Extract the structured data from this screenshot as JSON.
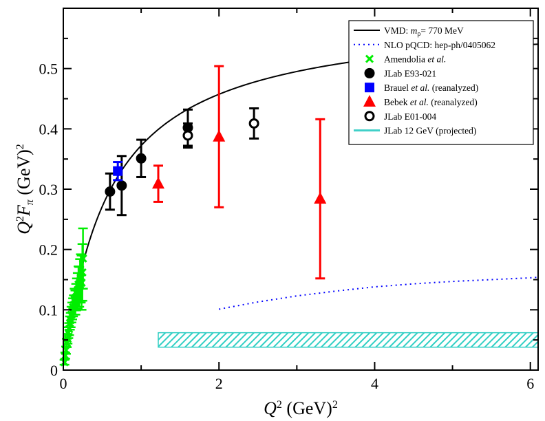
{
  "chart_data": {
    "type": "scatter",
    "title": "",
    "xlabel": {
      "q": "Q",
      "sup": "2",
      "units": "(GeV)",
      "units_sup": "2"
    },
    "ylabel": {
      "q": "Q",
      "sup": "2",
      "f": "F",
      "sub": "π",
      "units": "(GeV)",
      "units_sup": "2"
    },
    "xlim": [
      0,
      6.1
    ],
    "ylim": [
      0,
      0.6
    ],
    "xticks": [
      "0",
      "2",
      "4",
      "6"
    ],
    "xtick_values": [
      0,
      2,
      4,
      6
    ],
    "yticks": [
      "0",
      "0.1",
      "0.2",
      "0.3",
      "0.4",
      "0.5"
    ],
    "ytick_values": [
      0,
      0.1,
      0.2,
      0.3,
      0.4,
      0.5
    ],
    "legend_position": "top-right",
    "legend": [
      {
        "key": "vmd",
        "parts": [
          {
            "t": "VMD: "
          },
          {
            "t": "m",
            "i": true
          },
          {
            "t": "ρ",
            "sub": true
          },
          {
            "t": "= 770 MeV"
          }
        ]
      },
      {
        "key": "nlo",
        "parts": [
          {
            "t": "NLO pQCD: hep-ph/0405062"
          }
        ]
      },
      {
        "key": "amendolia",
        "parts": [
          {
            "t": "Amendolia "
          },
          {
            "t": "et al.",
            "i": true
          }
        ]
      },
      {
        "key": "e93",
        "parts": [
          {
            "t": "JLab E93-021"
          }
        ]
      },
      {
        "key": "brauel",
        "parts": [
          {
            "t": "Brauel "
          },
          {
            "t": "et al.",
            "i": true
          },
          {
            "t": " (reanalyzed)"
          }
        ]
      },
      {
        "key": "bebek",
        "parts": [
          {
            "t": "Bebek "
          },
          {
            "t": "et al.",
            "i": true
          },
          {
            "t": " (reanalyzed)"
          }
        ]
      },
      {
        "key": "e01",
        "parts": [
          {
            "t": "JLab E01-004"
          }
        ]
      },
      {
        "key": "jlab12",
        "parts": [
          {
            "t": "JLab 12 GeV (projected)"
          }
        ]
      }
    ],
    "series": [
      {
        "name": "VMD: m_rho = 770 MeV",
        "key": "vmd",
        "type": "line",
        "color": "#000000",
        "mrho2": 0.593,
        "x_range": [
          0.05,
          6.1
        ]
      },
      {
        "name": "NLO pQCD: hep-ph/0405062",
        "key": "nlo",
        "type": "line",
        "color": "#0000ff",
        "x": [
          2.0,
          2.5,
          3.0,
          3.5,
          4.0,
          4.5,
          5.0,
          5.5,
          6.0,
          6.1
        ],
        "y": [
          0.101,
          0.113,
          0.123,
          0.131,
          0.138,
          0.143,
          0.147,
          0.15,
          0.153,
          0.154
        ]
      },
      {
        "name": "Amendolia et al.",
        "key": "amendolia",
        "type": "scatter",
        "color": "#00ee00",
        "x": [
          0.015,
          0.025,
          0.035,
          0.045,
          0.055,
          0.065,
          0.075,
          0.085,
          0.095,
          0.105,
          0.115,
          0.125,
          0.135,
          0.145,
          0.155,
          0.165,
          0.175,
          0.185,
          0.195,
          0.205,
          0.215,
          0.225,
          0.235,
          0.245,
          0.253
        ],
        "y": [
          0.013,
          0.024,
          0.033,
          0.045,
          0.052,
          0.062,
          0.068,
          0.078,
          0.083,
          0.092,
          0.098,
          0.104,
          0.108,
          0.117,
          0.112,
          0.121,
          0.127,
          0.133,
          0.142,
          0.138,
          0.148,
          0.152,
          0.145,
          0.162,
          0.185
        ],
        "err": [
          0.004,
          0.005,
          0.006,
          0.007,
          0.008,
          0.009,
          0.01,
          0.011,
          0.012,
          0.013,
          0.014,
          0.015,
          0.016,
          0.018,
          0.02,
          0.022,
          0.025,
          0.028,
          0.03,
          0.033,
          0.036,
          0.04,
          0.045,
          0.047,
          0.05
        ]
      },
      {
        "name": "JLab E93-021",
        "key": "e93",
        "type": "scatter",
        "color": "#000000",
        "x": [
          0.6,
          0.75,
          1.0,
          1.6
        ],
        "y": [
          0.296,
          0.306,
          0.351,
          0.402
        ],
        "err": [
          0.03,
          0.049,
          0.031,
          0.03
        ]
      },
      {
        "name": "Brauel et al. (reanalyzed)",
        "key": "brauel",
        "type": "scatter",
        "color": "#0000ff",
        "x": [
          0.7
        ],
        "y": [
          0.33
        ],
        "err": [
          0.015
        ]
      },
      {
        "name": "Bebek et al. (reanalyzed)",
        "key": "bebek",
        "type": "scatter",
        "color": "#ff0000",
        "x": [
          1.22,
          2.0,
          3.3
        ],
        "y": [
          0.309,
          0.387,
          0.284
        ],
        "err": [
          0.03,
          0.117,
          0.132
        ]
      },
      {
        "name": "JLab E01-004",
        "key": "e01",
        "type": "scatter",
        "color": "#000000",
        "x": [
          1.6,
          2.45
        ],
        "y": [
          0.389,
          0.409
        ],
        "err": [
          0.02,
          0.025
        ]
      },
      {
        "name": "JLab 12 GeV (projected)",
        "key": "jlab12",
        "type": "band",
        "color": "#40d0c8",
        "x_range": [
          1.22,
          6.1
        ],
        "y_range": [
          0.038,
          0.062
        ]
      }
    ]
  }
}
